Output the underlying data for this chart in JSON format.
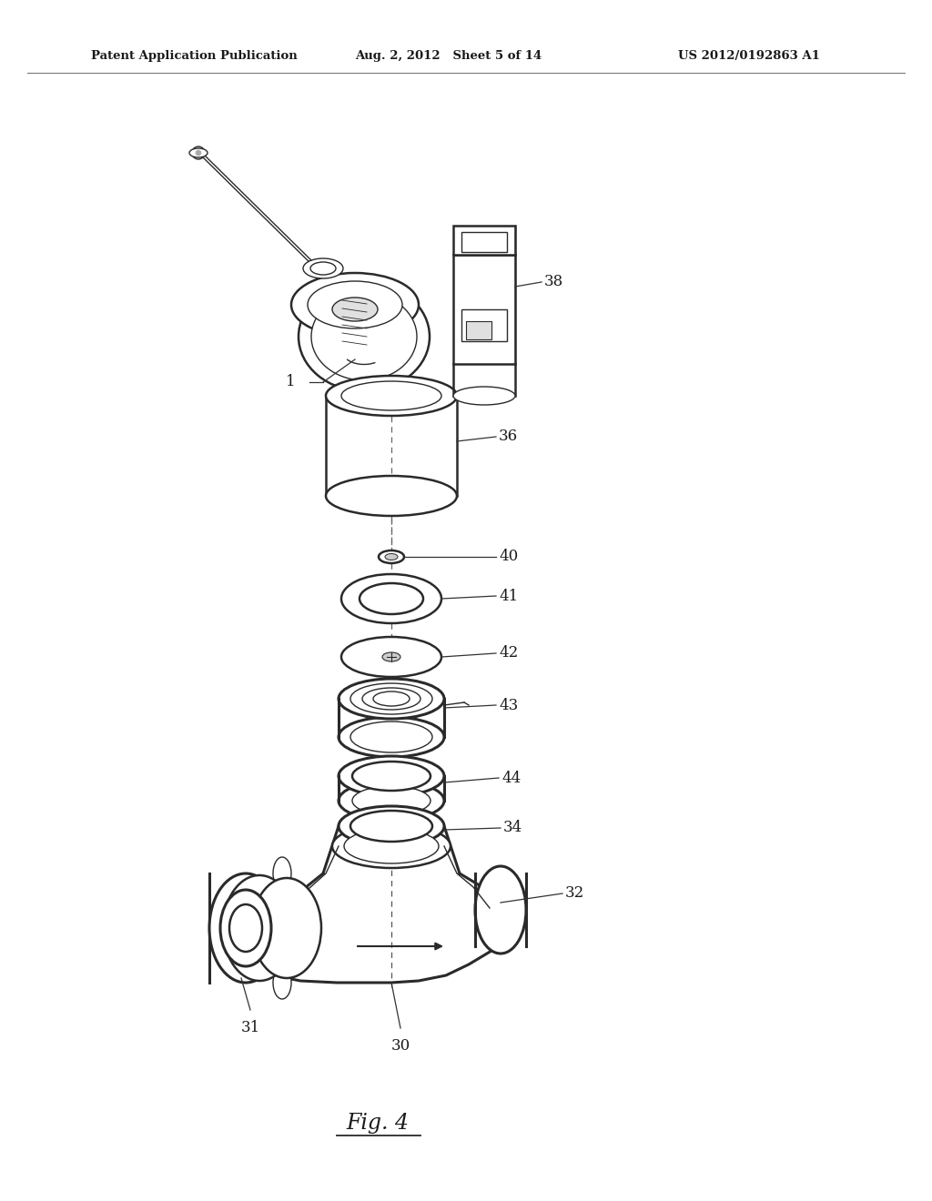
{
  "bg_color": "#ffffff",
  "line_color": "#2a2a2a",
  "text_color": "#1a1a1a",
  "header_left": "Patent Application Publication",
  "header_center": "Aug. 2, 2012   Sheet 5 of 14",
  "header_right": "US 2012/0192863 A1",
  "figure_label": "Fig. 4",
  "lw_main": 1.8,
  "lw_thin": 1.0,
  "lw_thick": 2.2
}
